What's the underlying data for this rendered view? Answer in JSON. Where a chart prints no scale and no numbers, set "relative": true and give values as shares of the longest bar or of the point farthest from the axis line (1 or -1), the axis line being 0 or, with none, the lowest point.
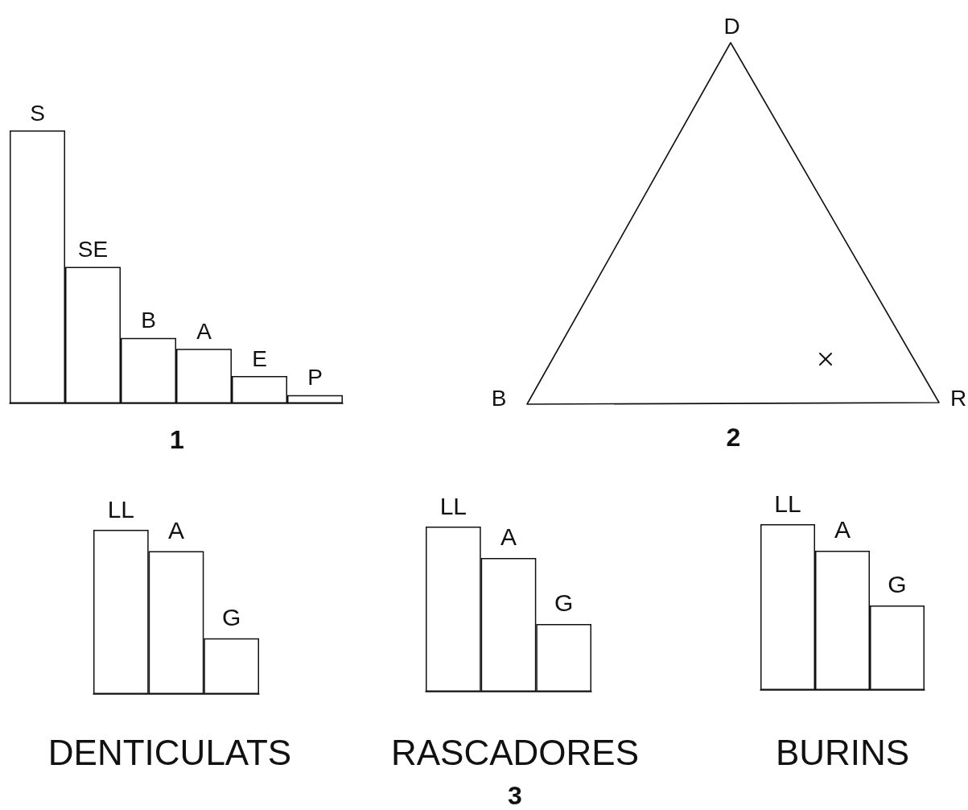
{
  "chart_data": [
    {
      "type": "bar",
      "title": "1",
      "categories": [
        "S",
        "SE",
        "B",
        "A",
        "E",
        "P"
      ],
      "values": [
        1,
        0.5,
        0.24,
        0.2,
        0.1,
        0.03
      ],
      "color": "#ffffff",
      "relative": true
    },
    {
      "type": "other",
      "title": "2",
      "annotations": [
        "D",
        "B",
        "R"
      ]
    },
    {
      "type": "bar",
      "title": "DENTICULATS",
      "categories": [
        "LL",
        "A",
        "G"
      ],
      "values": [
        1,
        0.87,
        0.34
      ],
      "color": "#ffffff",
      "relative": true
    },
    {
      "type": "bar",
      "title": "RASCADORES",
      "categories": [
        "LL",
        "A",
        "G"
      ],
      "values": [
        1,
        0.81,
        0.41
      ],
      "color": "#ffffff",
      "relative": true,
      "annotations": [
        "3"
      ]
    },
    {
      "type": "bar",
      "title": "BURINS",
      "categories": [
        "LL",
        "A",
        "G"
      ],
      "values": [
        1,
        0.84,
        0.51
      ],
      "color": "#ffffff",
      "relative": true
    }
  ]
}
